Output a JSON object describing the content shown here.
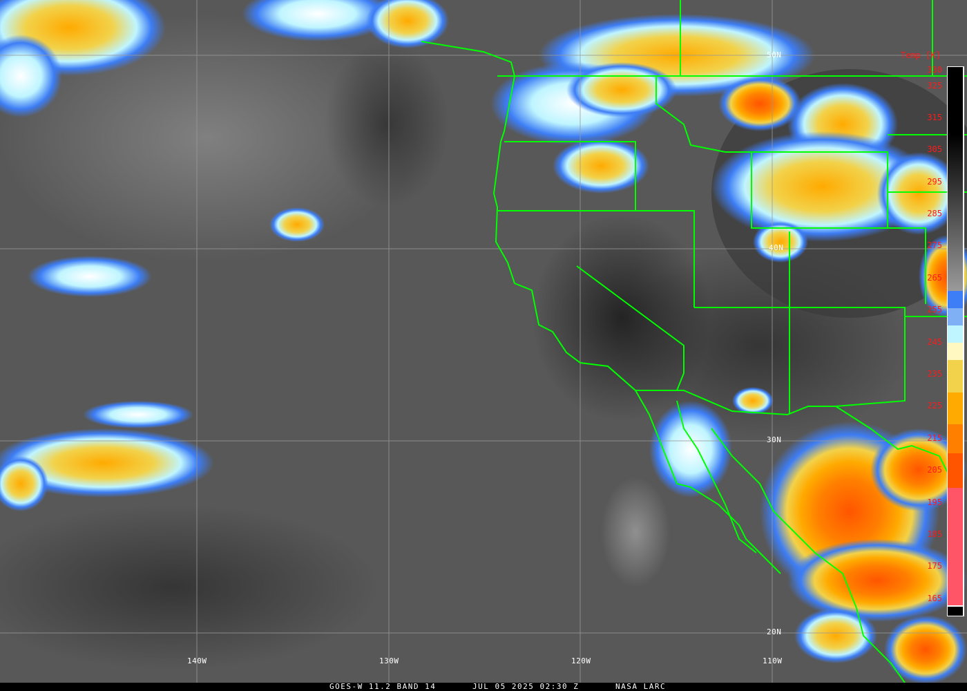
{
  "map": {
    "longitude_labels": [
      "140W",
      "130W",
      "120W",
      "110W"
    ],
    "latitude_labels": [
      "50N",
      "40N",
      "30N",
      "20N"
    ]
  },
  "colorbar": {
    "title": "Temp [K]",
    "ticks": [
      "330",
      "325",
      "315",
      "305",
      "295",
      "285",
      "275",
      "265",
      "255",
      "245",
      "235",
      "225",
      "215",
      "205",
      "195",
      "185",
      "175",
      "165"
    ],
    "colors": {
      "warm": "#000000",
      "gray": "#9a9a9a",
      "blue": "#3d7df5",
      "light_blue": "#7fb0f5",
      "cyan": "#bff5ff",
      "pale_yellow": "#fff8c0",
      "yellow": "#f2d24a",
      "orange": "#ffaa00",
      "dark_orange": "#ff7f00",
      "red_orange": "#ff5500",
      "pink": "#ff5566"
    }
  },
  "footer": {
    "satellite": "GOES-W 11.2 BAND 14",
    "datetime": "JUL 05 2025 02:30 Z",
    "agency": "NASA LARC"
  },
  "border_color": "#00ff00"
}
